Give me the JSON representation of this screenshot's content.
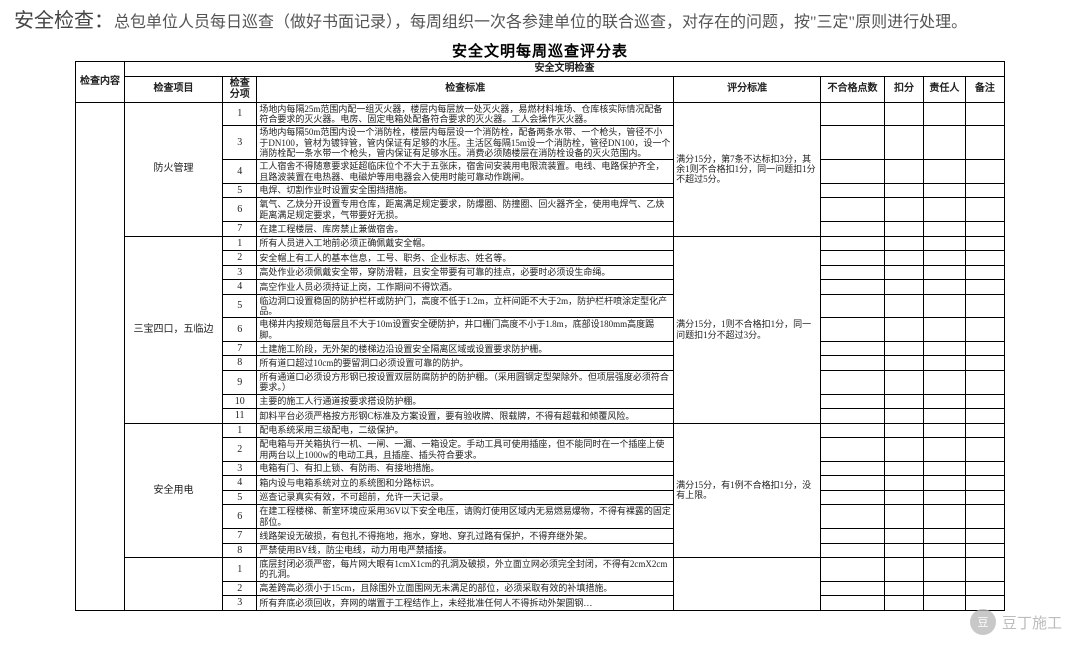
{
  "header": {
    "lead": "安全检查：",
    "body": "总包单位人员每日巡查（做好书面记录），每周组织一次各参建单位的联合巡查，对存在的问题，按\"三定\"原则进行处理。"
  },
  "table": {
    "title": "安全文明每周巡查评分表",
    "top_span": "安全文明检查",
    "columns": {
      "c1": "检查内容",
      "c2": "检查项目",
      "c3": "检查分项",
      "c4": "检查标准",
      "c5": "评分标准",
      "c6": "不合格点数",
      "c7": "扣分",
      "c8": "责任人",
      "c9": "备注"
    },
    "widths": {
      "c1": 40,
      "c2": 80,
      "c3": 28,
      "c4": 340,
      "c5": 120,
      "c6": 52,
      "c7": 32,
      "c8": 34,
      "c9": 32
    },
    "sections": [
      {
        "category": "防火管理",
        "criteria": "满分15分，第7条不达标扣3分，其余1则不合格扣1分，同一问题扣1分不超过5分。",
        "rows": [
          {
            "n": "1",
            "std": "场地内每隔25m范围内配一组灭火器，楼层内每层放一处灭火器，易燃材料堆场、仓库核实际情况配备符合要求的灭火器。电房、固定电箱处配备符合要求的灭火器。工人会操作灭火器。"
          },
          {
            "n": "3",
            "std": "场地内每隔50m范围内设一个消防栓，楼层内每层设一个消防栓，配备两条水带、一个枪头，管径不小于DN100，管材为镀锌管，管内保证有足够的水压。主活区每隔15m设一个消防栓，管径DN100，设一个消防栓配一条水带一个枪头，管内保证有足够水压。消费必须随楼层在消防栓设备的灭火范围内。"
          },
          {
            "n": "4",
            "std": "工人宿舍不得随意要求延超临床位个不大于五张床，宿舍间安装用电限流装置。电线、电路保护齐全，且路波装置在电热器、电磁炉等用电器会入使用时能可靠动作跳闸。"
          },
          {
            "n": "5",
            "std": "电焊、切割作业时设置安全围挡措施。"
          },
          {
            "n": "6",
            "std": "氧气、乙炔分开设置专用仓库，距离满足规定要求，防爆圈、防撞圈、回火器齐全，使用电焊气、乙炔距离满足规定要求，气带要好无损。"
          },
          {
            "n": "7",
            "std": "在建工程楼层、库房禁止兼做宿舍。"
          }
        ]
      },
      {
        "category": "三宝四口，五临边",
        "criteria": "满分15分，1则不合格扣1分，同一问题扣1分不超过3分。",
        "rows": [
          {
            "n": "1",
            "std": "所有人员进入工地前必须正确佩戴安全帽。"
          },
          {
            "n": "2",
            "std": "安全帽上有工人的基本信息，工号、职务、企业标志、姓名等。"
          },
          {
            "n": "3",
            "std": "高处作业必须佩戴安全带，穿防滑鞋，且安全带要有可靠的挂点，必要时必须设生命绳。"
          },
          {
            "n": "4",
            "std": "高空作业人员必须持证上岗，工作期间不得饮酒。"
          },
          {
            "n": "5",
            "std": "临边洞口设置稳固的防护栏杆或防护门，高度不低于1.2m，立杆间距不大于2m，防护栏杆喷涂定型化产品。"
          },
          {
            "n": "6",
            "std": "电梯井内按规范每层且不大于10m设置安全硬防护，井口栅门高度不小于1.8m，底部设180mm高度踢脚。"
          },
          {
            "n": "7",
            "std": "土建施工阶段，无外架的楼梯边沿设置安全隔离区域或设置要求防护栅。"
          },
          {
            "n": "8",
            "std": "所有道口超过10cm的要留洞口必须设置可靠的防护。"
          },
          {
            "n": "9",
            "std": "所有通道口必须设方形钢已按设置双层防腐防护的防护棚。（采用圆钢定型架除外。但项层强度必须符合要求。）"
          },
          {
            "n": "10",
            "std": "主要的施工人行通道按要求搭设防护棚。"
          },
          {
            "n": "11",
            "std": "卸料平台必须严格按方形钢C标准及方案设置，要有验收牌、限载牌，不得有超载和倾覆风险。"
          }
        ]
      },
      {
        "category": "安全用电",
        "criteria": "满分15分，有1例不合格扣1分，没有上限。",
        "rows": [
          {
            "n": "1",
            "std": "配电系统采用三级配电，二级保护。"
          },
          {
            "n": "2",
            "std": "配电箱与开关箱执行一机、一闸、一漏、一箱设定。手动工具可使用插座，但不能同时在一个插座上使用两台以上1000w的电动工具，且插座、插头符合要求。"
          },
          {
            "n": "3",
            "std": "电箱有门、有扣上锁、有防雨、有接地措施。"
          },
          {
            "n": "4",
            "std": "箱内设与电箱系统对立的系统图和分路标识。"
          },
          {
            "n": "5",
            "std": "巡查记录真实有效，不可超前，允许一天记录。"
          },
          {
            "n": "6",
            "std": "在建工程楼梯、新室环境应采用36V以下安全电压，请购灯使用区域内无易燃易爆物，不得有裸露的固定部位。"
          },
          {
            "n": "7",
            "std": "线路架设无破损，有包扎不得拖地，拖水，穿地、穿孔过路有保护，不得弃继外架。"
          },
          {
            "n": "8",
            "std": "严禁使用BV线，防尘电线，动力用电严禁插接。"
          }
        ]
      },
      {
        "category_partial": true,
        "category": "",
        "criteria": "",
        "rows": [
          {
            "n": "1",
            "std": "底层封闭必须严密，每片网大眼有1cmX1cm的孔洞及破损，外立面立网必须完全封闭，不得有2cmX2cm的孔洞。"
          },
          {
            "n": "2",
            "std": "高差跨高必须小于15cm，且除围外立面围网无未满足的部位，必须采取有效的补填措施。"
          },
          {
            "n": "3",
            "std": "所有弃底必须回收，弃网的端置于工程结作上，未经批准任何人不得拆动外架圆钢…"
          }
        ]
      }
    ]
  },
  "watermark": {
    "icon": "豆",
    "text": "豆丁施工"
  }
}
